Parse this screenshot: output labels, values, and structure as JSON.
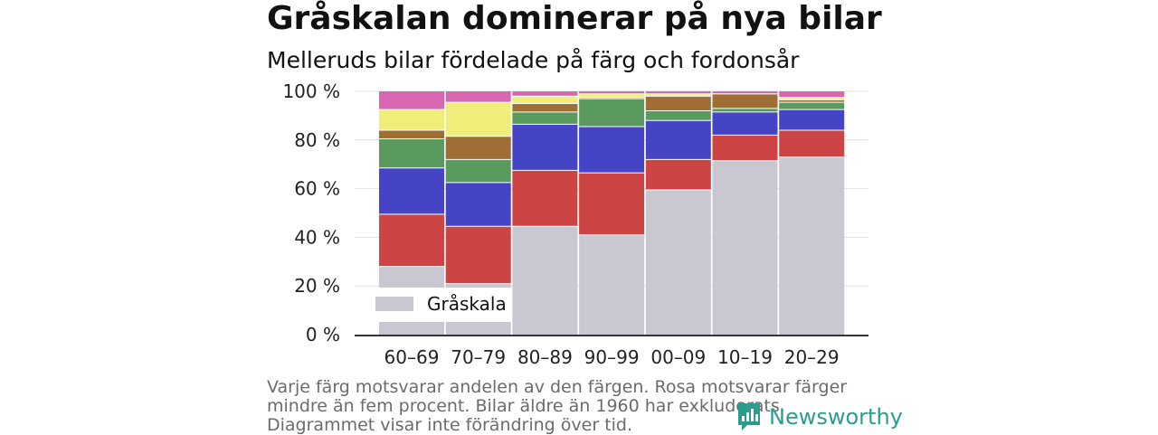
{
  "title": "Gråskalan dominerar på nya bilar",
  "subtitle": "Melleruds bilar fördelade på färg och fordonsår",
  "footnote": "Varje färg motsvarar andelen av den färgen. Rosa motsvarar färger mindre än fem procent. Bilar äldre än 1960 har exkluderats. Diagrammet visar inte förändring över tid.",
  "brand": {
    "name": "Newsworthy",
    "icon": "newsworthy-logo-icon",
    "color": "#2a9d8f"
  },
  "chart_data": {
    "type": "bar",
    "stacked": true,
    "categories": [
      "60–69",
      "70–79",
      "80–89",
      "90–99",
      "00–09",
      "10–19",
      "20–29"
    ],
    "y_ticks": [
      "0 %",
      "20 %",
      "40 %",
      "60 %",
      "80 %",
      "100 %"
    ],
    "ylim": [
      0,
      100
    ],
    "grid": true,
    "legend": {
      "position": "bottom-left",
      "entries": [
        "Gråskala"
      ]
    },
    "series": [
      {
        "name": "Gråskala",
        "color": "#c8c7d2",
        "values": [
          28,
          21,
          44.5,
          41,
          59.5,
          71.5,
          73
        ]
      },
      {
        "color": "#cc4444",
        "values": [
          21.5,
          23.5,
          23,
          25.5,
          12.5,
          10.5,
          11
        ]
      },
      {
        "color": "#4444c4",
        "values": [
          19,
          18,
          19,
          19,
          16,
          9.5,
          8.5
        ]
      },
      {
        "color": "#5a9a5e",
        "values": [
          12,
          9.5,
          5,
          11.5,
          4,
          1.5,
          3
        ]
      },
      {
        "color": "#9e6e34",
        "values": [
          3.5,
          9.5,
          3.5,
          0.5,
          6,
          6,
          1
        ]
      },
      {
        "color": "#eeee78",
        "values": [
          8.5,
          14,
          3,
          1.5,
          1,
          0,
          1
        ]
      },
      {
        "color": "#d966b0",
        "values": [
          7.5,
          4.5,
          2,
          1,
          1,
          1,
          2.5
        ]
      }
    ]
  }
}
